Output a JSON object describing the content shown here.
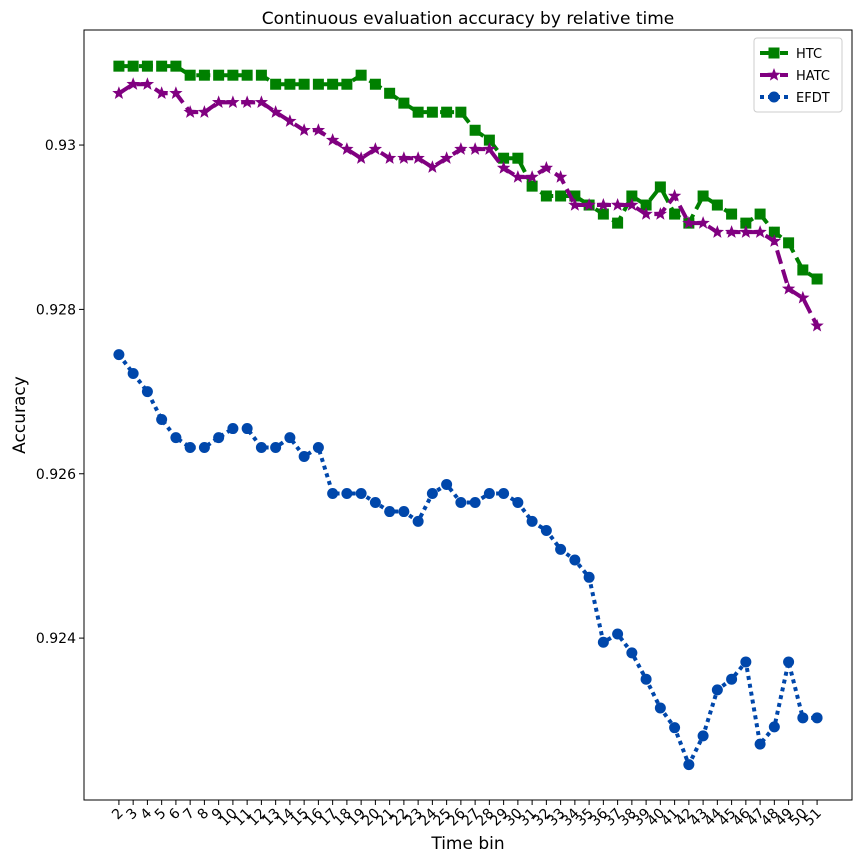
{
  "chart_data": {
    "type": "line",
    "title": "Continuous evaluation accuracy by relative time",
    "xlabel": "Time bin",
    "ylabel": "Accuracy",
    "x": [
      2,
      3,
      4,
      5,
      6,
      7,
      8,
      9,
      10,
      11,
      12,
      13,
      14,
      15,
      16,
      17,
      18,
      19,
      20,
      21,
      22,
      23,
      24,
      25,
      26,
      27,
      28,
      29,
      30,
      31,
      32,
      33,
      34,
      35,
      36,
      37,
      38,
      39,
      40,
      41,
      42,
      43,
      44,
      45,
      46,
      47,
      48,
      49,
      50,
      51
    ],
    "xlim": [
      -0.45,
      53.45
    ],
    "xticks": [
      2,
      3,
      4,
      5,
      6,
      7,
      8,
      9,
      10,
      11,
      12,
      13,
      14,
      15,
      16,
      17,
      18,
      19,
      20,
      21,
      22,
      23,
      24,
      25,
      26,
      27,
      28,
      29,
      30,
      31,
      32,
      33,
      34,
      35,
      36,
      37,
      38,
      39,
      40,
      41,
      42,
      43,
      44,
      45,
      46,
      47,
      48,
      49,
      50,
      51
    ],
    "ylim": [
      0.92203,
      0.9314
    ],
    "yticks": [
      0.924,
      0.926,
      0.928,
      0.93
    ],
    "legend": "upper right",
    "grid": false,
    "series": [
      {
        "name": "HTC",
        "color": "#008000",
        "linestyle": "dashed",
        "marker": "square",
        "values": [
          0.93096,
          0.93096,
          0.93096,
          0.93096,
          0.93096,
          0.93085,
          0.93085,
          0.93085,
          0.93085,
          0.93085,
          0.93085,
          0.93074,
          0.93074,
          0.93074,
          0.93074,
          0.93074,
          0.93074,
          0.93085,
          0.93074,
          0.93063,
          0.93051,
          0.9304,
          0.9304,
          0.9304,
          0.9304,
          0.93018,
          0.93006,
          0.92984,
          0.92984,
          0.9295,
          0.92938,
          0.92938,
          0.92938,
          0.92927,
          0.92916,
          0.92905,
          0.92938,
          0.92927,
          0.92949,
          0.92916,
          0.92905,
          0.92938,
          0.92927,
          0.92916,
          0.92905,
          0.92916,
          0.92894,
          0.92881,
          0.92848,
          0.92837
        ]
      },
      {
        "name": "HATC",
        "color": "#800080",
        "linestyle": "dashed",
        "marker": "star",
        "values": [
          0.93063,
          0.93074,
          0.93074,
          0.93063,
          0.93063,
          0.9304,
          0.9304,
          0.93052,
          0.93052,
          0.93052,
          0.93052,
          0.9304,
          0.93029,
          0.93018,
          0.93018,
          0.93006,
          0.92995,
          0.92984,
          0.92995,
          0.92984,
          0.92984,
          0.92984,
          0.92973,
          0.92984,
          0.92995,
          0.92995,
          0.92995,
          0.92972,
          0.92961,
          0.92961,
          0.92972,
          0.92961,
          0.92927,
          0.92927,
          0.92927,
          0.92927,
          0.92927,
          0.92916,
          0.92916,
          0.92938,
          0.92905,
          0.92905,
          0.92894,
          0.92894,
          0.92894,
          0.92894,
          0.92883,
          0.92825,
          0.92814,
          0.9278
        ]
      },
      {
        "name": "EFDT",
        "color": "#0047ab",
        "linestyle": "dotted",
        "marker": "circle",
        "values": [
          0.92745,
          0.92722,
          0.927,
          0.92666,
          0.92644,
          0.92632,
          0.92632,
          0.92644,
          0.92655,
          0.92655,
          0.92632,
          0.92632,
          0.92644,
          0.92621,
          0.92632,
          0.92576,
          0.92576,
          0.92576,
          0.92565,
          0.92554,
          0.92554,
          0.92542,
          0.92576,
          0.92587,
          0.92565,
          0.92565,
          0.92576,
          0.92576,
          0.92565,
          0.92542,
          0.92531,
          0.92508,
          0.92495,
          0.92474,
          0.92395,
          0.92405,
          0.92382,
          0.9235,
          0.92315,
          0.92291,
          0.92246,
          0.92281,
          0.92337,
          0.9235,
          0.92371,
          0.92271,
          0.92292,
          0.92371,
          0.92303,
          0.92303
        ]
      }
    ]
  }
}
